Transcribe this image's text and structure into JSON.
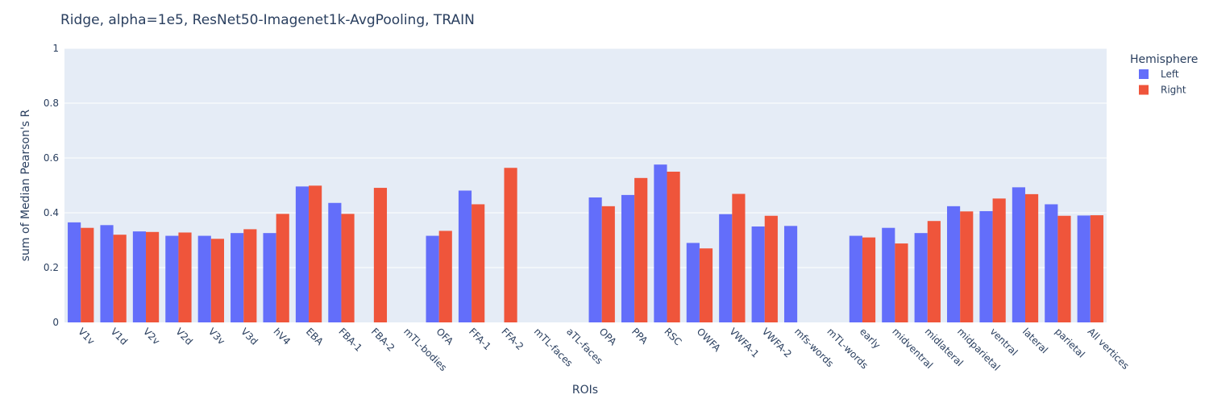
{
  "chart_data": {
    "type": "bar",
    "title": "Ridge, alpha=1e5, ResNet50-Imagenet1k-AvgPooling, TRAIN",
    "xlabel": "ROIs",
    "ylabel": "sum of Median Pearson's R",
    "ylim": [
      0,
      1
    ],
    "yticks": [
      "0",
      "0.2",
      "0.4",
      "0.6",
      "0.8",
      "1"
    ],
    "grid": true,
    "legend_title": "Hemisphere",
    "legend_position": "top-right",
    "categories": [
      "V1v",
      "V1d",
      "V2v",
      "V2d",
      "V3v",
      "V3d",
      "hV4",
      "EBA",
      "FBA-1",
      "FBA-2",
      "mTL-bodies",
      "OFA",
      "FFA-1",
      "FFA-2",
      "mTL-faces",
      "aTL-faces",
      "OPA",
      "PPA",
      "RSC",
      "OWFA",
      "VWFA-1",
      "VWFA-2",
      "mfs-words",
      "mTL-words",
      "early",
      "midventral",
      "midlateral",
      "midparietal",
      "ventral",
      "lateral",
      "parietal",
      "All vertices"
    ],
    "series": [
      {
        "name": "Left",
        "color": "#636efa",
        "values": [
          0.365,
          0.355,
          0.332,
          0.316,
          0.316,
          0.326,
          0.326,
          0.496,
          0.436,
          null,
          null,
          0.316,
          0.481,
          null,
          null,
          null,
          0.456,
          0.465,
          0.576,
          0.29,
          0.395,
          0.35,
          0.352,
          null,
          0.316,
          0.345,
          0.326,
          0.424,
          0.406,
          0.493,
          0.431,
          0.39
        ]
      },
      {
        "name": "Right",
        "color": "#ef553b",
        "values": [
          0.345,
          0.32,
          0.33,
          0.328,
          0.305,
          0.34,
          0.396,
          0.499,
          0.396,
          0.491,
          null,
          0.334,
          0.431,
          0.564,
          null,
          null,
          0.424,
          0.527,
          0.55,
          0.27,
          0.469,
          0.389,
          null,
          null,
          0.31,
          0.288,
          0.37,
          0.405,
          0.452,
          0.468,
          0.389,
          0.391
        ]
      }
    ]
  }
}
